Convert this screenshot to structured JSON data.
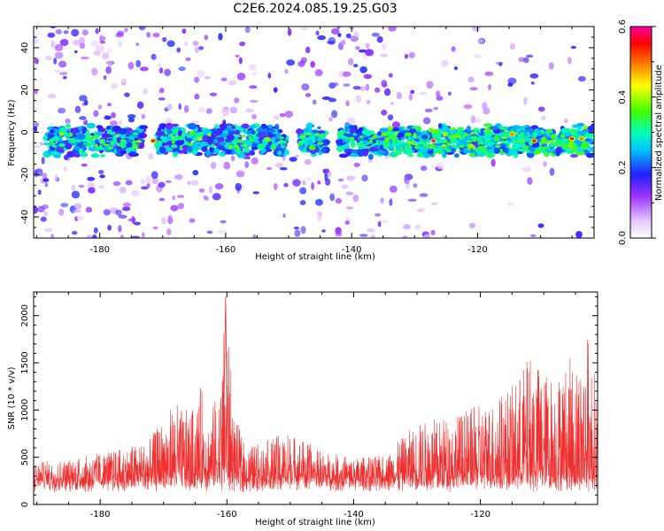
{
  "title": "C2E6.2024.085.19.25.G03",
  "chart_data": [
    {
      "type": "heatmap",
      "xlabel": "Height of straight line (km)",
      "ylabel": "Frequency (Hz)",
      "xlim": [
        -190.5,
        -101.5
      ],
      "ylim": [
        -50,
        50
      ],
      "xticks": [
        -180,
        -160,
        -140,
        -120
      ],
      "yticks": [
        -40,
        -20,
        0,
        20,
        40
      ],
      "colorbar": {
        "label": "Normalized spectral amplitude",
        "range": [
          0.0,
          0.6
        ],
        "ticks": [
          "0.0",
          "0.2",
          "0.4",
          "0.6"
        ]
      },
      "band": {
        "center_hz": -4,
        "half_width_hz": 7,
        "gaps_km": [
          [
            -173,
            -171
          ],
          [
            -150.5,
            -148.5
          ],
          [
            -144,
            -142
          ]
        ],
        "peak_locations": [
          {
            "x": -171.5,
            "y": -4,
            "value": 0.55
          },
          {
            "x": -127,
            "y": -4,
            "value": 0.6
          },
          {
            "x": -114.5,
            "y": -1,
            "value": 0.5
          },
          {
            "x": -111,
            "y": -4,
            "value": 0.55
          },
          {
            "x": -105,
            "y": -3,
            "value": 0.55
          },
          {
            "x": -103.5,
            "y": -3,
            "value": 0.5
          }
        ]
      }
    },
    {
      "type": "line",
      "xlabel": "Height of straight line (km)",
      "ylabel": "SNR (10 * v/v)",
      "xlim": [
        -190.5,
        -101.5
      ],
      "ylim": [
        0,
        2250
      ],
      "xticks": [
        -180,
        -160,
        -140,
        -120
      ],
      "yticks": [
        0,
        500,
        1000,
        1500,
        2000
      ],
      "series": [
        {
          "color": "#ef3030",
          "baseline": 220,
          "envelope": [
            {
              "x": -190.5,
              "y": 450
            },
            {
              "x": -185,
              "y": 480
            },
            {
              "x": -180,
              "y": 550
            },
            {
              "x": -176,
              "y": 600
            },
            {
              "x": -172,
              "y": 700
            },
            {
              "x": -170.5,
              "y": 880
            },
            {
              "x": -168,
              "y": 1100
            },
            {
              "x": -167,
              "y": 1000
            },
            {
              "x": -165.5,
              "y": 1000
            },
            {
              "x": -164,
              "y": 1270
            },
            {
              "x": -163,
              "y": 900
            },
            {
              "x": -161,
              "y": 1300
            },
            {
              "x": -160.2,
              "y": 2200
            },
            {
              "x": -159,
              "y": 1000
            },
            {
              "x": -157,
              "y": 600
            },
            {
              "x": -150,
              "y": 780
            },
            {
              "x": -145,
              "y": 560
            },
            {
              "x": -140,
              "y": 500
            },
            {
              "x": -135,
              "y": 520
            },
            {
              "x": -130,
              "y": 870
            },
            {
              "x": -125,
              "y": 950
            },
            {
              "x": -122,
              "y": 1000
            },
            {
              "x": -119,
              "y": 1100
            },
            {
              "x": -115,
              "y": 1250
            },
            {
              "x": -112,
              "y": 1630
            },
            {
              "x": -110,
              "y": 1420
            },
            {
              "x": -108,
              "y": 1400
            },
            {
              "x": -106,
              "y": 1550
            },
            {
              "x": -104,
              "y": 1600
            },
            {
              "x": -103,
              "y": 1850
            },
            {
              "x": -101.5,
              "y": 1200
            }
          ]
        }
      ]
    }
  ]
}
